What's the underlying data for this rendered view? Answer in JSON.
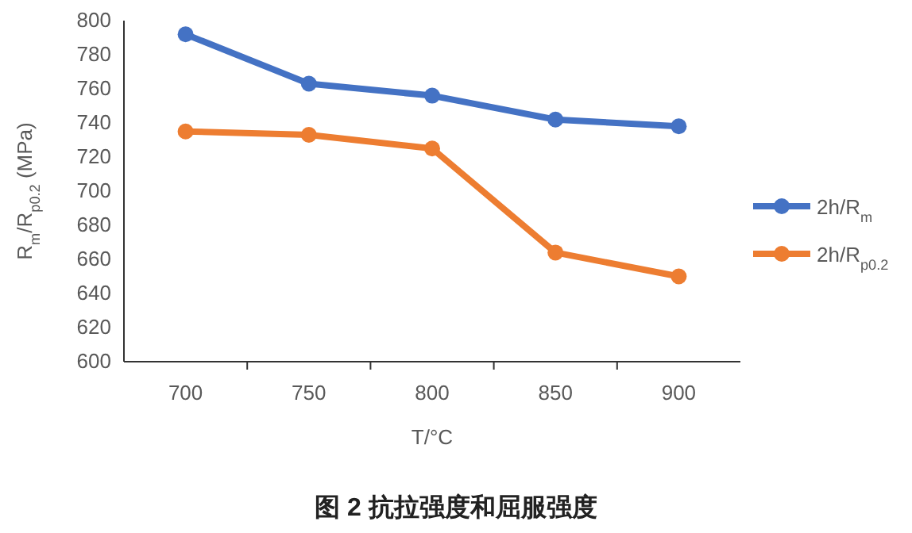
{
  "chart_data": {
    "type": "line",
    "title": "图 2 抗拉强度和屈服强度",
    "xlabel": "T/°C",
    "ylabel": "R$_{m}$/R$_{p0.2}$ (MPa)",
    "categories": [
      "700",
      "750",
      "800",
      "850",
      "900"
    ],
    "series": [
      {
        "name": "2h/R$_{m}$",
        "color": "#4472c4",
        "values": [
          792,
          763,
          756,
          742,
          738
        ]
      },
      {
        "name": "2h/R$_{p0.2}$",
        "color": "#ed7d31",
        "values": [
          735,
          733,
          725,
          664,
          650
        ]
      }
    ],
    "ylim": [
      600,
      800
    ],
    "yticks": [
      600,
      620,
      640,
      660,
      680,
      700,
      720,
      740,
      760,
      780,
      800
    ],
    "legend": "right",
    "marker": "circle",
    "line_style": "solid"
  }
}
